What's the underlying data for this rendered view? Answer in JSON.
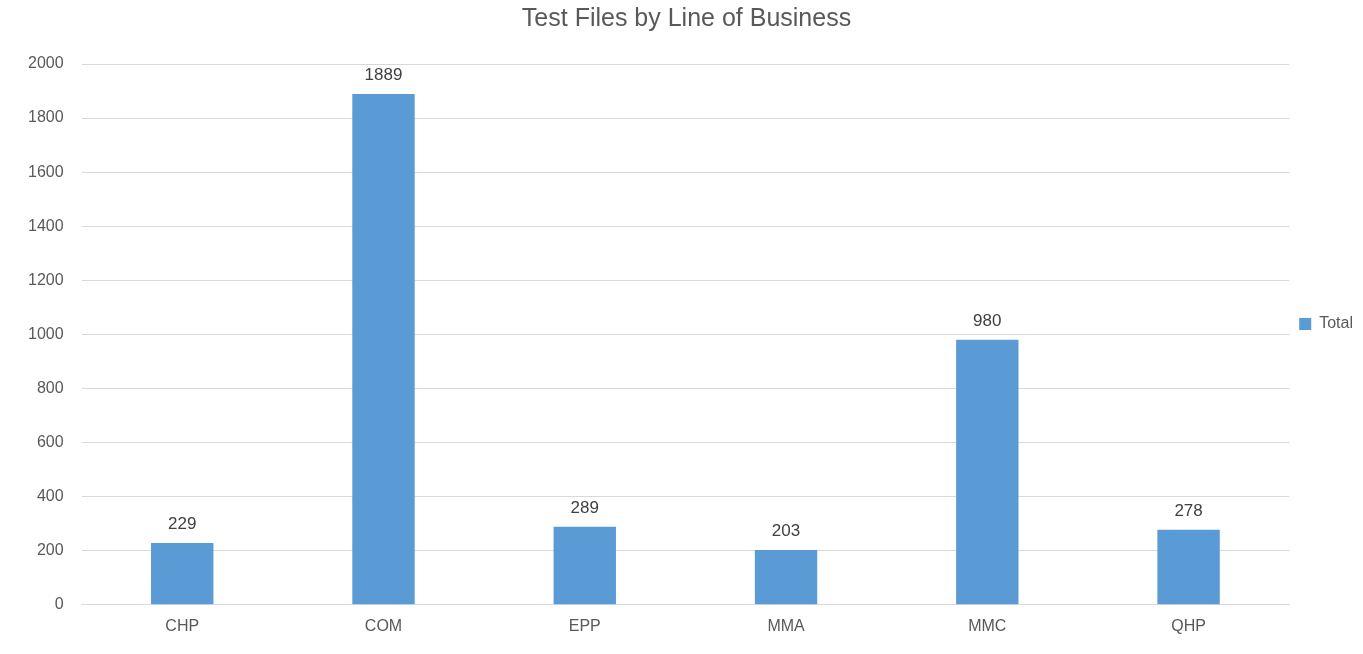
{
  "chart_data": {
    "type": "bar",
    "title": "Test Files by Line of Business",
    "categories": [
      "CHP",
      "COM",
      "EPP",
      "MMA",
      "MMC",
      "QHP"
    ],
    "series": [
      {
        "name": "Total",
        "color": "#5b9bd5",
        "values": [
          229,
          1889,
          289,
          203,
          980,
          278
        ]
      }
    ],
    "ylim": [
      0,
      2000
    ],
    "yticks": [
      0,
      200,
      400,
      600,
      800,
      1000,
      1200,
      1400,
      1600,
      1800,
      2000
    ],
    "grid": "y",
    "legend": "right",
    "data_labels": true
  }
}
